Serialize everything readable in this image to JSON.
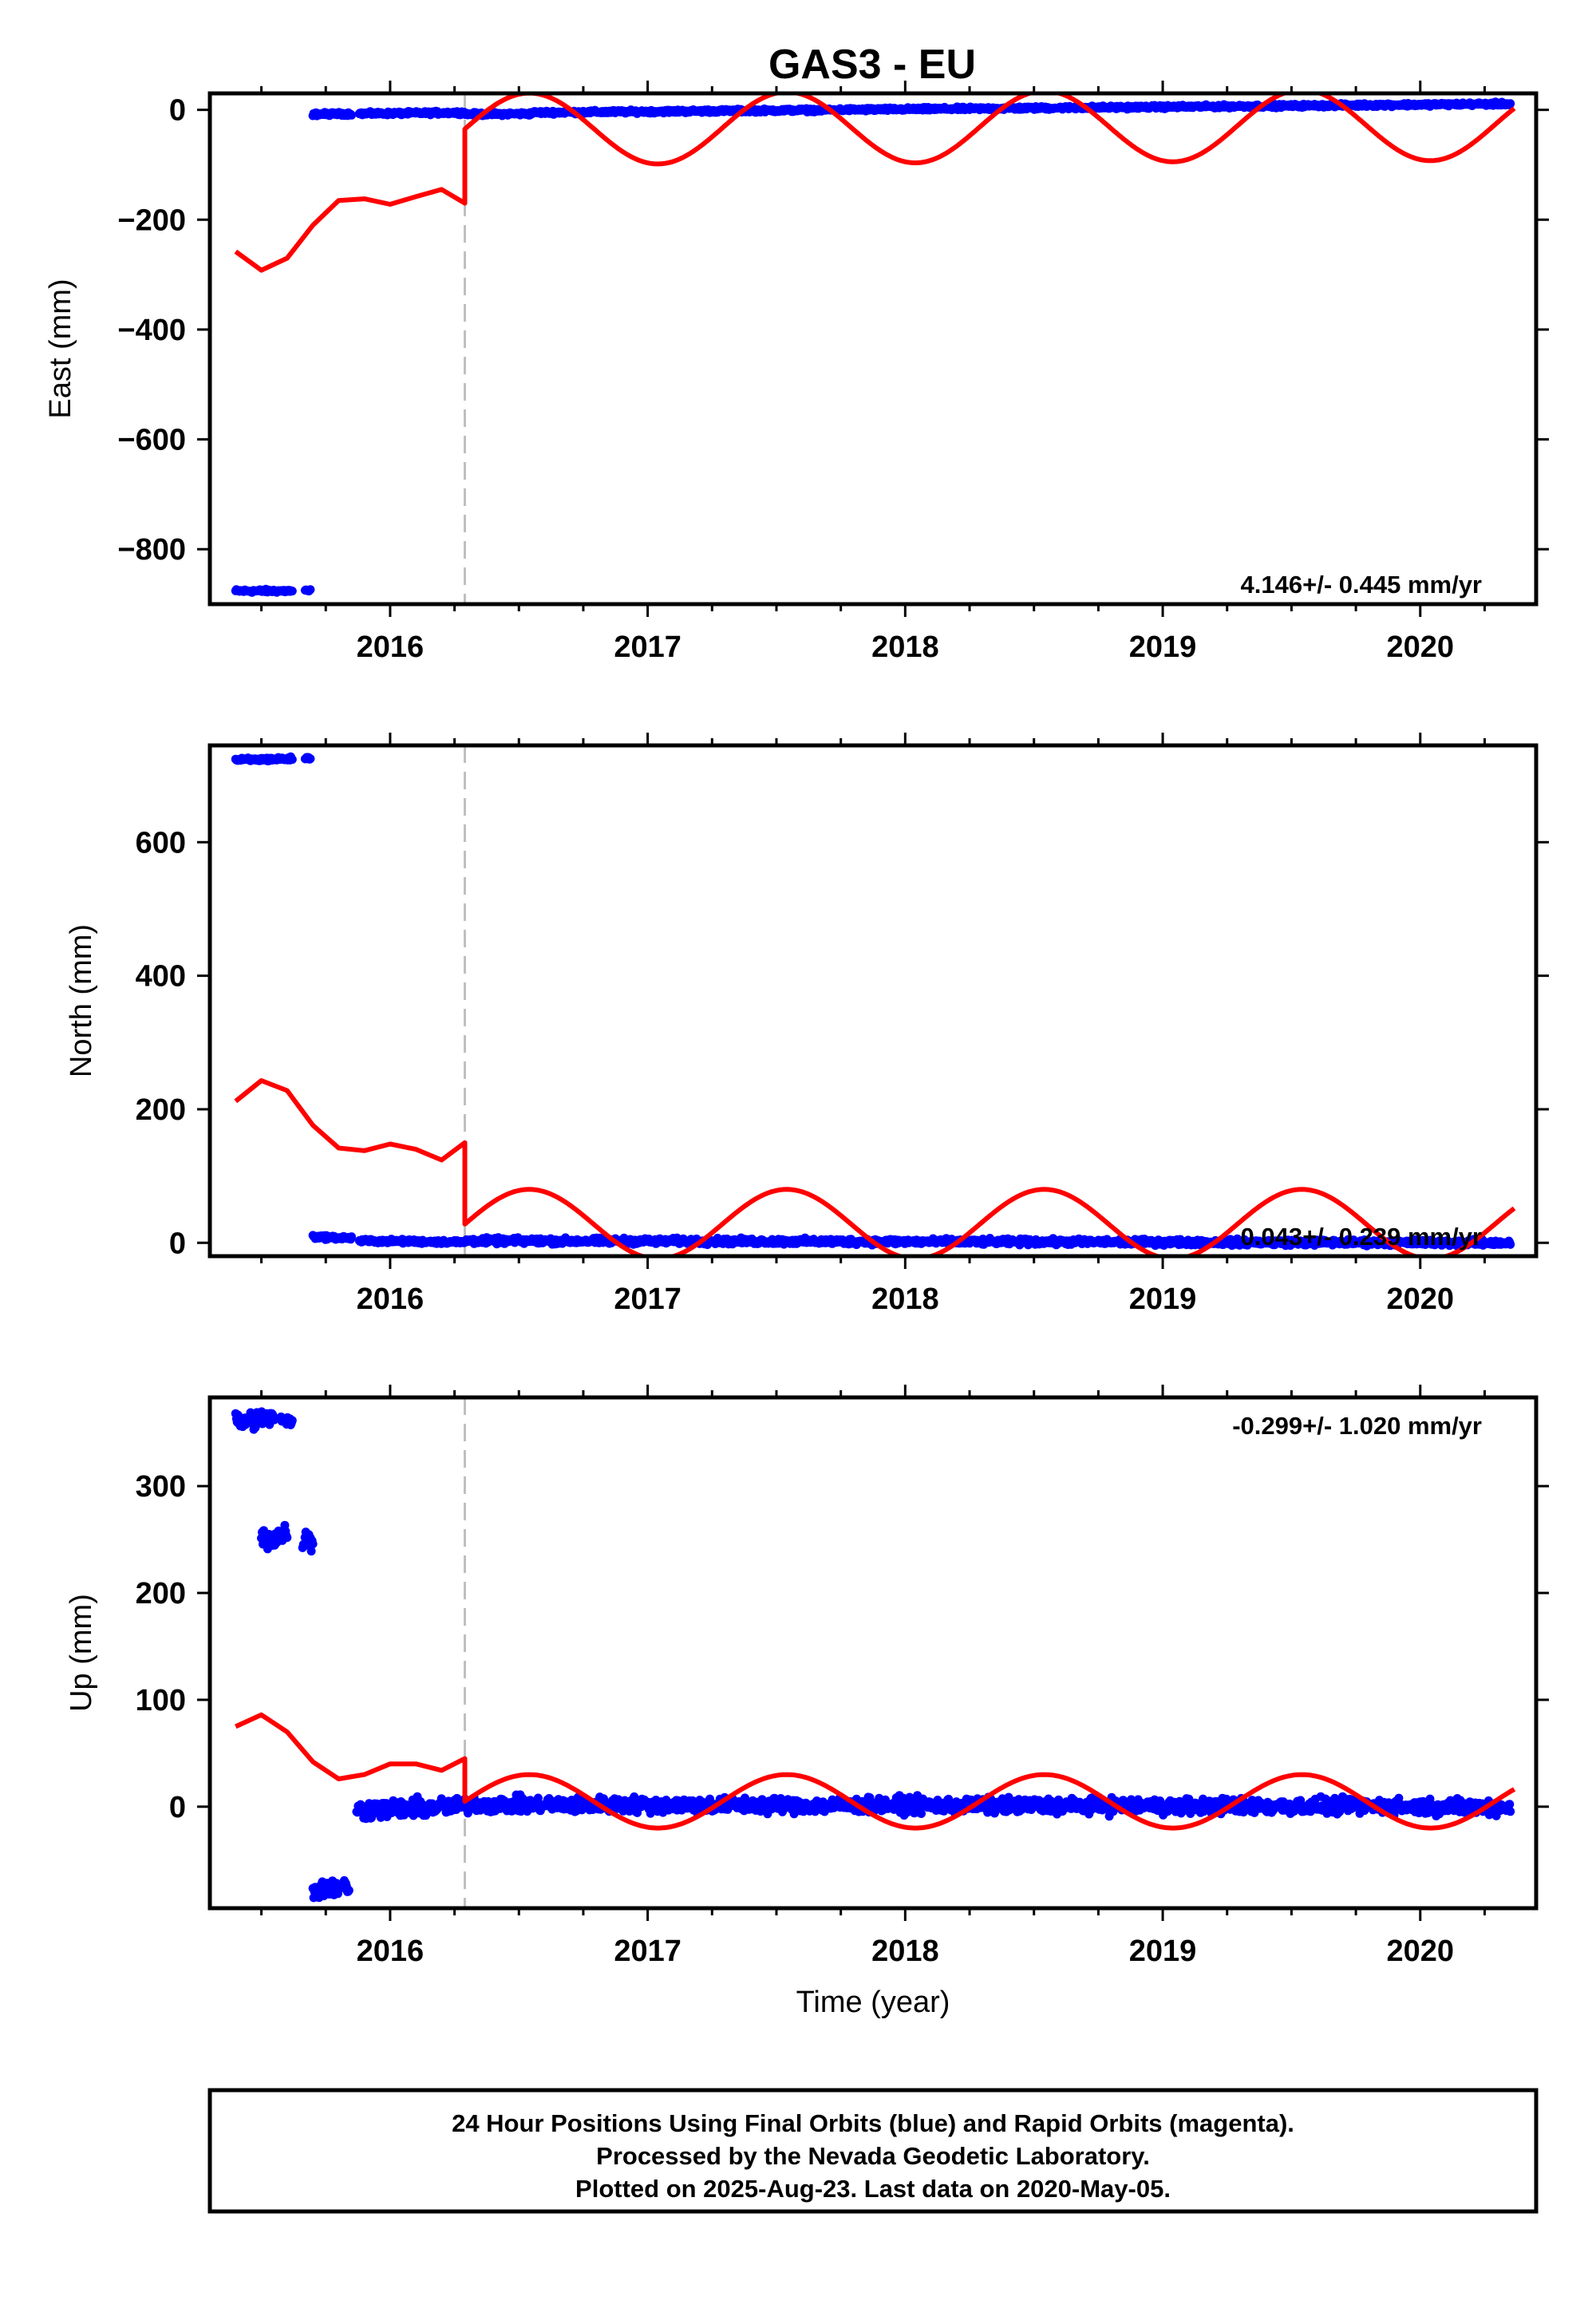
{
  "title": "GAS3 - EU",
  "footer": {
    "line1": "24 Hour Positions Using Final Orbits (blue) and Rapid Orbits (magenta).",
    "line2": "Processed by the Nevada Geodetic Laboratory.",
    "line3": "Plotted on 2025-Aug-23. Last data on 2020-May-05."
  },
  "colors": {
    "data": "#0000ff",
    "model": "#ff0000",
    "equipment_change": "#bfbfbf",
    "frame": "#000000"
  },
  "chart_data": [
    {
      "type": "scatter",
      "component": "east",
      "ylabel": "East (mm)",
      "xlabel": "",
      "xlim": [
        2015.3,
        2020.45
      ],
      "ylim": [
        -900,
        30
      ],
      "xticks": [
        2016,
        2017,
        2018,
        2019,
        2020
      ],
      "yticks": [
        0,
        -200,
        -400,
        -600,
        -800
      ],
      "ytick_labels": [
        "0",
        "−200",
        "−400",
        "−600",
        "−800"
      ],
      "rate_label": "4.146+/- 0.445 mm/yr",
      "rate_position": "bottom-right",
      "equipment_change_x": 2016.29,
      "data_segments": [
        {
          "x_start": 2015.4,
          "x_end": 2015.62,
          "y_start": -876,
          "y_end": -876,
          "noise": 2
        },
        {
          "x_start": 2015.67,
          "x_end": 2015.69,
          "y_start": -876,
          "y_end": -876,
          "noise": 2
        },
        {
          "x_start": 2015.7,
          "x_end": 2015.85,
          "y_start": -8,
          "y_end": -7,
          "noise": 2
        },
        {
          "x_start": 2015.88,
          "x_end": 2016.29,
          "y_start": -7,
          "y_end": -5,
          "noise": 2
        },
        {
          "x_start": 2016.29,
          "x_end": 2016.55,
          "y_start": -8,
          "y_end": -7,
          "noise": 2
        },
        {
          "x_start": 2016.55,
          "x_end": 2020.35,
          "y_start": -5,
          "y_end": 11,
          "noise": 2
        }
      ],
      "model": {
        "pre_x": [
          2015.4,
          2015.5,
          2015.6,
          2015.7,
          2015.8,
          2015.9,
          2016.0,
          2016.1,
          2016.2,
          2016.29
        ],
        "pre_y": [
          -258,
          -292,
          -270,
          -210,
          -165,
          -162,
          -172,
          -158,
          -145,
          -170
        ],
        "post_start": 2016.29,
        "post_offset": -35,
        "post_amplitude": 65,
        "post_phase_deg": 90,
        "post_trend_per_year": 2
      }
    },
    {
      "type": "scatter",
      "component": "north",
      "ylabel": "North (mm)",
      "xlabel": "",
      "xlim": [
        2015.3,
        2020.45
      ],
      "ylim": [
        -20,
        745
      ],
      "xticks": [
        2016,
        2017,
        2018,
        2019,
        2020
      ],
      "yticks": [
        0,
        200,
        400,
        600
      ],
      "ytick_labels": [
        "0",
        "200",
        "400",
        "600"
      ],
      "rate_label": "0.043+/- 0.239 mm/yr",
      "rate_position": "bottom-right",
      "equipment_change_x": 2016.29,
      "data_segments": [
        {
          "x_start": 2015.4,
          "x_end": 2015.62,
          "y_start": 723,
          "y_end": 725,
          "noise": 2
        },
        {
          "x_start": 2015.67,
          "x_end": 2015.69,
          "y_start": 726,
          "y_end": 726,
          "noise": 2
        },
        {
          "x_start": 2015.7,
          "x_end": 2015.85,
          "y_start": 9,
          "y_end": 7,
          "noise": 2
        },
        {
          "x_start": 2015.88,
          "x_end": 2016.29,
          "y_start": 3,
          "y_end": 1,
          "noise": 2
        },
        {
          "x_start": 2016.29,
          "x_end": 2020.35,
          "y_start": 3,
          "y_end": 0,
          "noise": 3
        }
      ],
      "model": {
        "pre_x": [
          2015.4,
          2015.5,
          2015.6,
          2015.7,
          2015.8,
          2015.9,
          2016.0,
          2016.1,
          2016.2,
          2016.29
        ],
        "pre_y": [
          212,
          243,
          228,
          176,
          142,
          138,
          148,
          140,
          124,
          150
        ],
        "post_start": 2016.29,
        "post_offset": 28,
        "post_amplitude": 52,
        "post_phase_deg": 90,
        "post_trend_per_year": 0
      }
    },
    {
      "type": "scatter",
      "component": "up",
      "ylabel": "Up (mm)",
      "xlabel": "Time (year)",
      "xlim": [
        2015.3,
        2020.45
      ],
      "ylim": [
        -95,
        383
      ],
      "xticks": [
        2016,
        2017,
        2018,
        2019,
        2020
      ],
      "yticks": [
        0,
        100,
        200,
        300
      ],
      "ytick_labels": [
        "0",
        "100",
        "200",
        "300"
      ],
      "rate_label": "-0.299+/- 1.020 mm/yr",
      "rate_position": "top-right",
      "equipment_change_x": 2016.29,
      "data_segments": [
        {
          "x_start": 2015.4,
          "x_end": 2015.55,
          "y_start": 360,
          "y_end": 365,
          "noise": 6
        },
        {
          "x_start": 2015.57,
          "x_end": 2015.62,
          "y_start": 362,
          "y_end": 360,
          "noise": 3
        },
        {
          "x_start": 2015.5,
          "x_end": 2015.6,
          "y_start": 250,
          "y_end": 255,
          "noise": 8
        },
        {
          "x_start": 2015.66,
          "x_end": 2015.7,
          "y_start": 252,
          "y_end": 250,
          "noise": 8
        },
        {
          "x_start": 2015.7,
          "x_end": 2015.84,
          "y_start": -78,
          "y_end": -75,
          "noise": 6
        },
        {
          "x_start": 2015.87,
          "x_end": 2016.29,
          "y_start": -3,
          "y_end": 0,
          "noise": 6
        },
        {
          "x_start": 2016.29,
          "x_end": 2020.35,
          "y_start": 2,
          "y_end": 0,
          "noise": 5
        }
      ],
      "model": {
        "pre_x": [
          2015.4,
          2015.5,
          2015.6,
          2015.7,
          2015.8,
          2015.9,
          2016.0,
          2016.1,
          2016.2,
          2016.29
        ],
        "pre_y": [
          75,
          86,
          70,
          42,
          26,
          30,
          40,
          40,
          34,
          45
        ],
        "post_start": 2016.29,
        "post_offset": 5,
        "post_amplitude": 25,
        "post_phase_deg": 90,
        "post_trend_per_year": 0
      }
    }
  ]
}
